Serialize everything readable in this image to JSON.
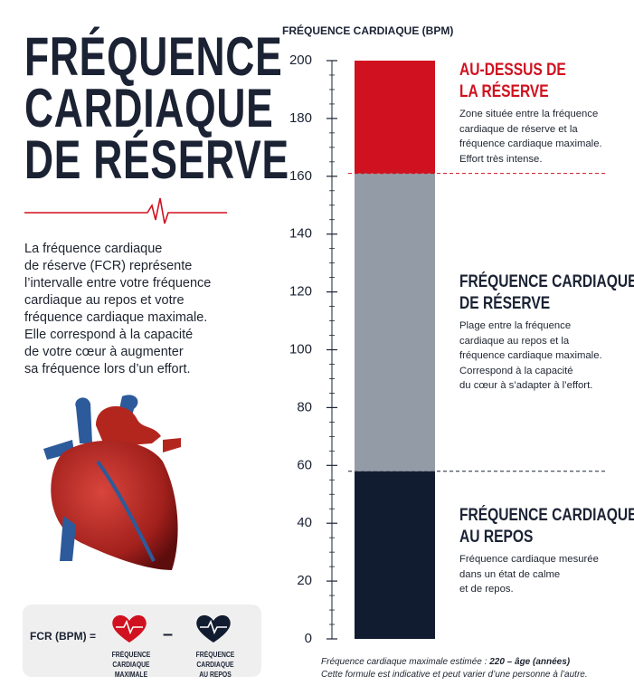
{
  "header": {
    "title": "FRÉQUENCE\nCARDIAQUE\nDE RÉSERVE",
    "intro": "La fréquence cardiaque\nde réserve (FCR) représente\nl’intervalle entre votre fréquence\ncardiaque au repos et votre\nfréquence cardiaque maximale.\nElle correspond à la capacité\nde votre cœur à augmenter\nsa fréquence lors d’un effort."
  },
  "formula": {
    "lhs": "FCR (BPM) =",
    "max_label": "FRÉQUENCE CARDIAQUE\nMAXIMALE",
    "minus": "–",
    "rest_label": "FRÉQUENCE CARDIAQUE\nAU REPOS"
  },
  "chart_data": {
    "type": "bar",
    "stacked": true,
    "y_label": "FRÉQUENCE CARDIAQUE (BPM)",
    "categories": [
      null
    ],
    "ylim": [
      0,
      200
    ],
    "yticks": [
      0,
      20,
      40,
      60,
      80,
      100,
      120,
      140,
      160,
      180,
      200
    ],
    "series": [
      {
        "name": "FRÉQUENCE CARDIAQUE\nAU REPOS",
        "color": "#111c30",
        "values": [
          58
        ],
        "description": "Fréquence cardiaque mesurée\ndans un état de calme\net de repos."
      },
      {
        "name": "FRÉQUENCE CARDIAQUE\nDE RÉSERVE",
        "color": "#939ca6",
        "values": [
          103
        ],
        "description": "Plage entre la fréquence\ncardiaque au repos et la\nfréquence cardiaque maximale.\nCorrespond à la capacité\ndu cœur à s’adapter à l’effort."
      },
      {
        "name": "AU-DESSUS DE\nLA RÉSERVE",
        "color": "#d0111f",
        "values": [
          39
        ],
        "description": "Zone située entre la fréquence\ncardiaque de réserve et la\nfréquence cardiaque maximale.\nEffort très intense."
      }
    ],
    "footnote_prefix": "Fréquence cardiaque maximale estimée : ",
    "footnote_formula": "220 – âge (années)",
    "footnote_note": "Cette formule est indicative et peut varier d’une personne à l’autre."
  }
}
